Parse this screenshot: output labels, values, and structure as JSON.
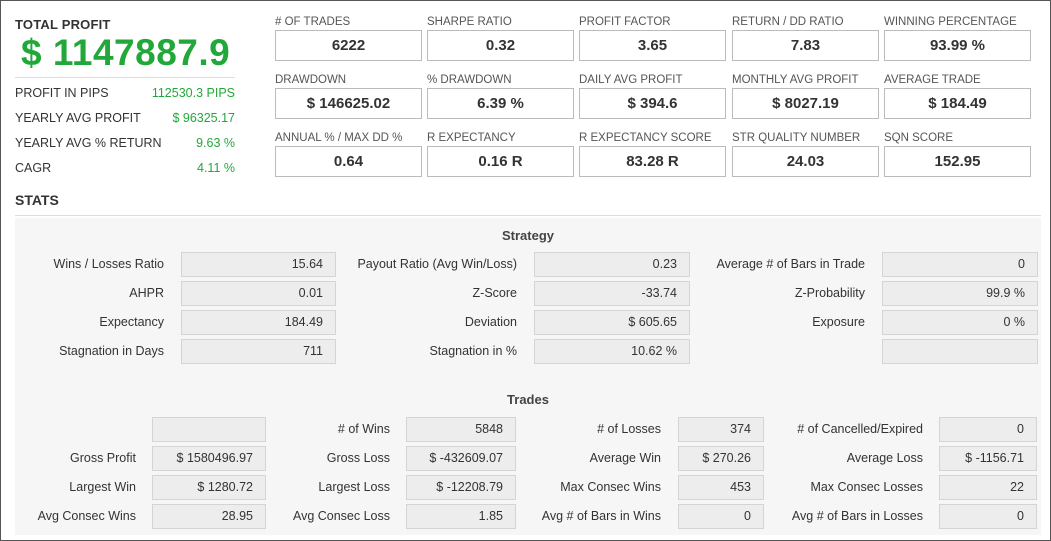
{
  "total_profit": {
    "label": "TOTAL PROFIT",
    "value": "$ 1147887.9",
    "rows": [
      {
        "label": "PROFIT IN PIPS",
        "value": "112530.3 PIPS"
      },
      {
        "label": "YEARLY AVG PROFIT",
        "value": "$ 96325.17"
      },
      {
        "label": "YEARLY AVG % RETURN",
        "value": "9.63 %"
      },
      {
        "label": "CAGR",
        "value": "4.11 %"
      }
    ]
  },
  "metrics": [
    [
      {
        "label": "# OF TRADES",
        "value": "6222"
      },
      {
        "label": "SHARPE RATIO",
        "value": "0.32"
      },
      {
        "label": "PROFIT FACTOR",
        "value": "3.65"
      },
      {
        "label": "RETURN / DD RATIO",
        "value": "7.83"
      },
      {
        "label": "WINNING PERCENTAGE",
        "value": "93.99 %"
      }
    ],
    [
      {
        "label": "DRAWDOWN",
        "value": "$ 146625.02"
      },
      {
        "label": "% DRAWDOWN",
        "value": "6.39 %"
      },
      {
        "label": "DAILY AVG PROFIT",
        "value": "$ 394.6"
      },
      {
        "label": "MONTHLY AVG PROFIT",
        "value": "$ 8027.19"
      },
      {
        "label": "AVERAGE TRADE",
        "value": "$ 184.49"
      }
    ],
    [
      {
        "label": "ANNUAL % / MAX DD %",
        "value": "0.64"
      },
      {
        "label": "R EXPECTANCY",
        "value": "0.16 R"
      },
      {
        "label": "R EXPECTANCY SCORE",
        "value": "83.28 R"
      },
      {
        "label": "STR QUALITY NUMBER",
        "value": "24.03"
      },
      {
        "label": "SQN SCORE",
        "value": "152.95"
      }
    ]
  ],
  "stats": {
    "title": "STATS",
    "strategy": {
      "title": "Strategy",
      "rows": [
        [
          {
            "label": "Wins / Losses Ratio",
            "value": "15.64"
          },
          {
            "label": "Payout Ratio (Avg Win/Loss)",
            "value": "0.23"
          },
          {
            "label": "Average # of Bars in Trade",
            "value": "0"
          }
        ],
        [
          {
            "label": "AHPR",
            "value": "0.01"
          },
          {
            "label": "Z-Score",
            "value": "-33.74"
          },
          {
            "label": "Z-Probability",
            "value": "99.9 %"
          }
        ],
        [
          {
            "label": "Expectancy",
            "value": "184.49"
          },
          {
            "label": "Deviation",
            "value": "$ 605.65"
          },
          {
            "label": "Exposure",
            "value": "0 %"
          }
        ],
        [
          {
            "label": "Stagnation in Days",
            "value": "711"
          },
          {
            "label": "Stagnation in %",
            "value": "10.62 %"
          },
          {
            "label": "",
            "value": ""
          }
        ]
      ]
    },
    "trades": {
      "title": "Trades",
      "rows": [
        [
          {
            "label": "",
            "value": ""
          },
          {
            "label": "# of Wins",
            "value": "5848"
          },
          {
            "label": "# of Losses",
            "value": "374"
          },
          {
            "label": "# of Cancelled/Expired",
            "value": "0"
          }
        ],
        [
          {
            "label": "Gross Profit",
            "value": "$ 1580496.97"
          },
          {
            "label": "Gross Loss",
            "value": "$ -432609.07"
          },
          {
            "label": "Average Win",
            "value": "$ 270.26"
          },
          {
            "label": "Average Loss",
            "value": "$ -1156.71"
          }
        ],
        [
          {
            "label": "Largest Win",
            "value": "$ 1280.72"
          },
          {
            "label": "Largest Loss",
            "value": "$ -12208.79"
          },
          {
            "label": "Max Consec Wins",
            "value": "453"
          },
          {
            "label": "Max Consec Losses",
            "value": "22"
          }
        ],
        [
          {
            "label": "Avg Consec Wins",
            "value": "28.95"
          },
          {
            "label": "Avg Consec Loss",
            "value": "1.85"
          },
          {
            "label": "Avg # of Bars in Wins",
            "value": "0"
          },
          {
            "label": "Avg # of Bars in Losses",
            "value": "0"
          }
        ]
      ]
    }
  }
}
